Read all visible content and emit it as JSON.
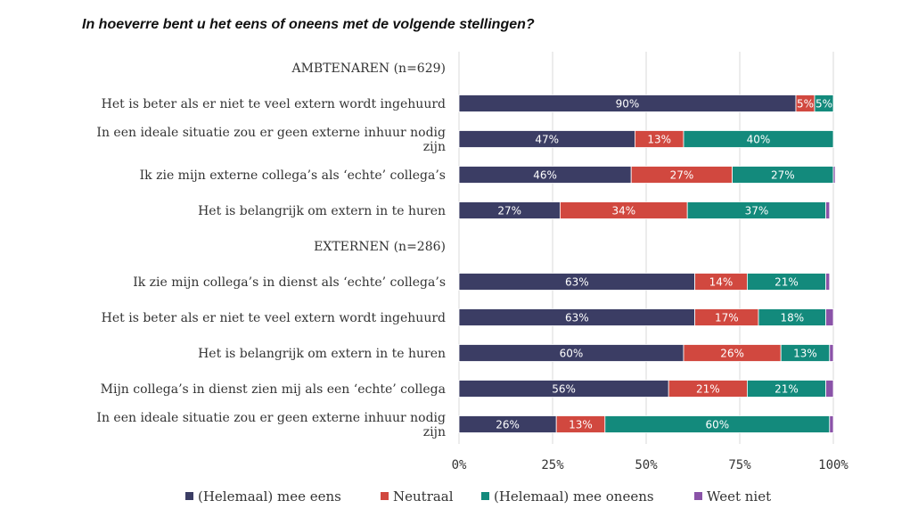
{
  "chart_data": {
    "type": "bar",
    "orientation": "horizontal",
    "stacked": true,
    "title": "In hoeverre bent u het eens of oneens met de volgende stellingen?",
    "xlim": [
      0,
      100
    ],
    "x_ticks": [
      "0%",
      "25%",
      "50%",
      "75%",
      "100%"
    ],
    "grid": true,
    "legend_position": "bottom",
    "series": [
      {
        "name": "(Helemaal) mee eens",
        "color": "#3b3d64"
      },
      {
        "name": "Neutraal",
        "color": "#d1483f"
      },
      {
        "name": "(Helemaal) mee oneens",
        "color": "#138a7c"
      },
      {
        "name": "Weet niet",
        "color": "#8a53a8"
      }
    ],
    "rows": [
      {
        "kind": "group",
        "label": "AMBTENAREN (n=629)"
      },
      {
        "kind": "bar",
        "lines": [
          "Het is beter als er niet te veel extern wordt ingehuurd"
        ],
        "values": [
          90,
          5,
          5,
          0
        ],
        "labels": [
          "90%",
          "5%",
          "5%",
          ""
        ]
      },
      {
        "kind": "bar",
        "lines": [
          "In een ideale situatie zou er geen externe inhuur nodig",
          "zijn"
        ],
        "values": [
          47,
          13,
          40,
          0
        ],
        "labels": [
          "47%",
          "13%",
          "40%",
          ""
        ]
      },
      {
        "kind": "bar",
        "lines": [
          "Ik zie mijn externe collega’s als ‘echte’ collega’s"
        ],
        "values": [
          46,
          27,
          27,
          0.5
        ],
        "labels": [
          "46%",
          "27%",
          "27%",
          ""
        ]
      },
      {
        "kind": "bar",
        "lines": [
          "Het is belangrijk om extern in te huren"
        ],
        "values": [
          27,
          34,
          37,
          1
        ],
        "labels": [
          "27%",
          "34%",
          "37%",
          ""
        ]
      },
      {
        "kind": "group",
        "label": "EXTERNEN (n=286)"
      },
      {
        "kind": "bar",
        "lines": [
          "Ik zie mijn collega’s in dienst als ‘echte’ collega’s"
        ],
        "values": [
          63,
          14,
          21,
          1
        ],
        "labels": [
          "63%",
          "14%",
          "21%",
          ""
        ]
      },
      {
        "kind": "bar",
        "lines": [
          "Het is beter als er niet te veel extern wordt ingehuurd"
        ],
        "values": [
          63,
          17,
          18,
          2
        ],
        "labels": [
          "63%",
          "17%",
          "18%",
          ""
        ]
      },
      {
        "kind": "bar",
        "lines": [
          "Het is belangrijk om extern in te huren"
        ],
        "values": [
          60,
          26,
          13,
          1
        ],
        "labels": [
          "60%",
          "26%",
          "13%",
          ""
        ]
      },
      {
        "kind": "bar",
        "lines": [
          "Mijn collega’s in dienst zien mij als een ‘echte’ collega"
        ],
        "values": [
          56,
          21,
          21,
          2
        ],
        "labels": [
          "56%",
          "21%",
          "21%",
          ""
        ]
      },
      {
        "kind": "bar",
        "lines": [
          "In een ideale situatie zou er geen externe inhuur nodig",
          "zijn"
        ],
        "values": [
          26,
          13,
          60,
          1
        ],
        "labels": [
          "26%",
          "13%",
          "60%",
          ""
        ]
      }
    ]
  }
}
